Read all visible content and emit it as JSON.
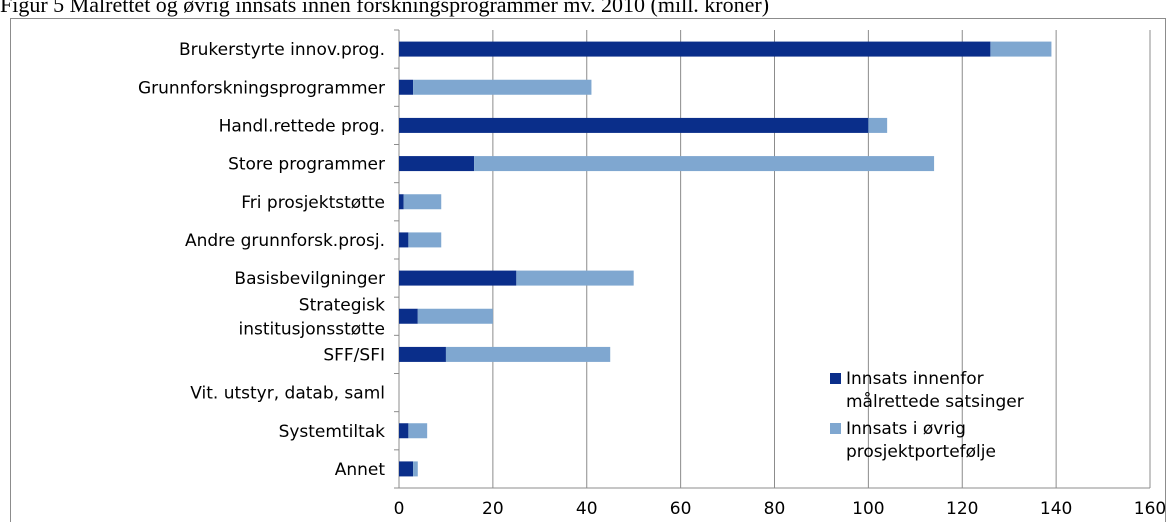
{
  "caption": "Figur 5 Målrettet og øvrig innsats innen forskningsprogrammer mv. 2010 (mill. kroner)",
  "chart_data": {
    "type": "bar",
    "orientation": "horizontal",
    "stacked": true,
    "categories": [
      "Brukerstyrte innov.prog.",
      "Grunnforskningsprogrammer",
      "Handl.rettede prog.",
      "Store programmer",
      "Fri prosjektstøtte",
      "Andre grunnforsk.prosj.",
      "Basisbevilgninger",
      "Strategisk institusjonsstøtte",
      "SFF/SFI",
      "Vit. utstyr, datab, saml",
      "Systemtiltak",
      "Annet"
    ],
    "category_label_lines": [
      [
        "Brukerstyrte innov.prog."
      ],
      [
        "Grunnforskningsprogrammer"
      ],
      [
        "Handl.rettede prog."
      ],
      [
        "Store programmer"
      ],
      [
        "Fri prosjektstøtte"
      ],
      [
        "Andre grunnforsk.prosj."
      ],
      [
        "Basisbevilgninger"
      ],
      [
        "Strategisk",
        "institusjonsstøtte"
      ],
      [
        "SFF/SFI"
      ],
      [
        "Vit. utstyr, datab, saml"
      ],
      [
        "Systemtiltak"
      ],
      [
        "Annet"
      ]
    ],
    "series": [
      {
        "name": "Innsats innenfor målrettede satsinger",
        "color": "#0a2e8a",
        "values": [
          126,
          3,
          100,
          16,
          1,
          2,
          25,
          4,
          10,
          0,
          2,
          3
        ]
      },
      {
        "name": "Innsats i øvrig prosjektportefølje",
        "color": "#7fa7d0",
        "values": [
          13,
          38,
          4,
          98,
          8,
          7,
          25,
          16,
          35,
          0,
          4,
          1
        ]
      }
    ],
    "xlim": [
      0,
      160
    ],
    "xticks": [
      0,
      20,
      40,
      60,
      80,
      100,
      120,
      140,
      160
    ],
    "grid": true,
    "legend_position": "bottom-right",
    "legend_lines": [
      [
        "Innsats innenfor",
        "målrettede satsinger"
      ],
      [
        "Innsats i øvrig",
        "prosjektportefølje"
      ]
    ]
  }
}
